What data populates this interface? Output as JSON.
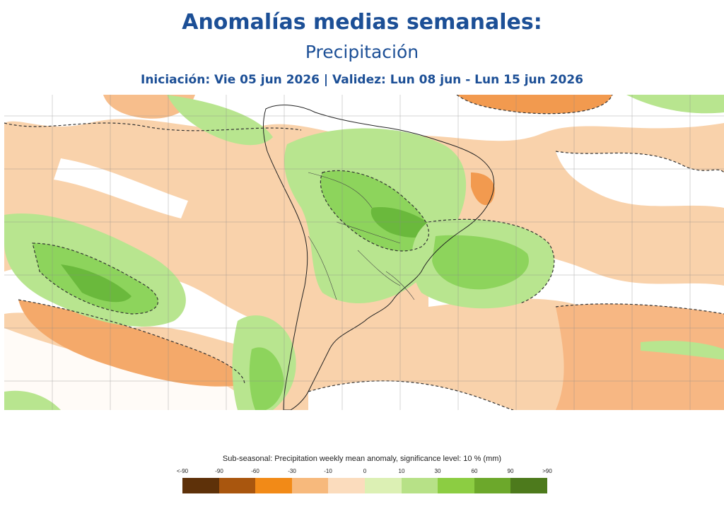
{
  "header": {
    "title": "Anomalías medias semanales:",
    "subtitle": "Precipitación",
    "validity": "Iniciación: Vie 05 jun 2026 | Validez: Lun 08 jun - Lun 15 jun 2026"
  },
  "map": {
    "region": "South America and surrounding oceans",
    "dashed_contour": "significance level boundary",
    "colors": {
      "ocean_base": "#f9d2ab",
      "neutral": "#ffffff",
      "light_green": "#b8e58f",
      "mid_green": "#8dd45c",
      "dark_green": "#6ab93c",
      "light_orange": "#f7be8c",
      "orange": "#f29a4f"
    }
  },
  "legend": {
    "title": "Sub-seasonal: Precipitation weekly mean anomaly, significance level: 10 % (mm)",
    "labels": [
      "<-90",
      "-90",
      "-60",
      "-30",
      "-10",
      "0",
      "10",
      "30",
      "60",
      "90",
      ">90"
    ],
    "colors": [
      "#5e3109",
      "#a9560e",
      "#f28a17",
      "#f7b97c",
      "#fbdcbd",
      "#dcf0b4",
      "#b7e187",
      "#8ccd42",
      "#6ca82b",
      "#4d7a1c"
    ]
  }
}
